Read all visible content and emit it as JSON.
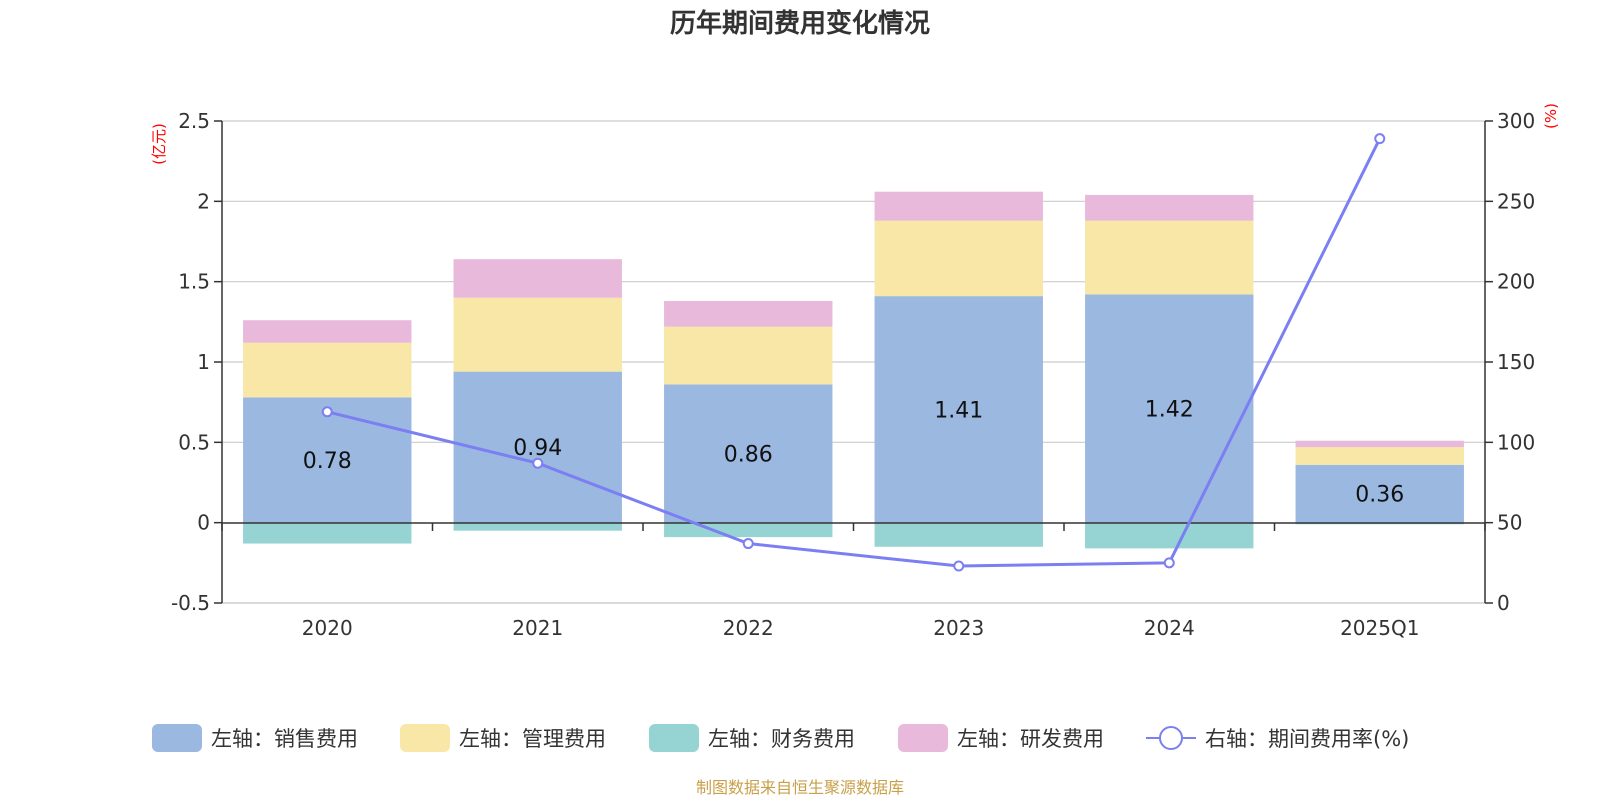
{
  "chart_data": {
    "type": "bar",
    "title": "历年期间费用变化情况",
    "categories": [
      "2020",
      "2021",
      "2022",
      "2023",
      "2024",
      "2025Q1"
    ],
    "left_axis": {
      "unit_label": "(亿元)",
      "ylim": [
        -0.5,
        2.5
      ],
      "ticks": [
        "-0.5",
        "0",
        "0.5",
        "1",
        "1.5",
        "2",
        "2.5"
      ]
    },
    "right_axis": {
      "unit_label": "(%)",
      "ylim": [
        0,
        300
      ],
      "ticks": [
        "0",
        "50",
        "100",
        "150",
        "200",
        "250",
        "300"
      ]
    },
    "series": [
      {
        "name": "左轴：销售费用",
        "type": "bar",
        "axis": "left",
        "color": "#9bb8e1",
        "values": [
          0.78,
          0.94,
          0.86,
          1.41,
          1.42,
          0.36
        ],
        "labels": [
          "0.78",
          "0.94",
          "0.86",
          "1.41",
          "1.42",
          "0.36"
        ]
      },
      {
        "name": "左轴：管理费用",
        "type": "bar",
        "axis": "left",
        "color": "#f8e7a7",
        "values": [
          0.34,
          0.46,
          0.36,
          0.47,
          0.46,
          0.11
        ]
      },
      {
        "name": "左轴：财务费用",
        "type": "bar",
        "axis": "left",
        "color": "#96d4d3",
        "values": [
          -0.13,
          -0.05,
          -0.09,
          -0.15,
          -0.16,
          -0.01
        ]
      },
      {
        "name": "左轴：研发费用",
        "type": "bar",
        "axis": "left",
        "color": "#e8b9da",
        "values": [
          0.14,
          0.24,
          0.16,
          0.18,
          0.16,
          0.04
        ]
      },
      {
        "name": "右轴：期间费用率(%)",
        "type": "line",
        "axis": "right",
        "color": "#7b7ff2",
        "values": [
          119,
          87,
          37,
          23,
          25,
          289
        ]
      }
    ]
  },
  "source": "制图数据来自恒生聚源数据库"
}
